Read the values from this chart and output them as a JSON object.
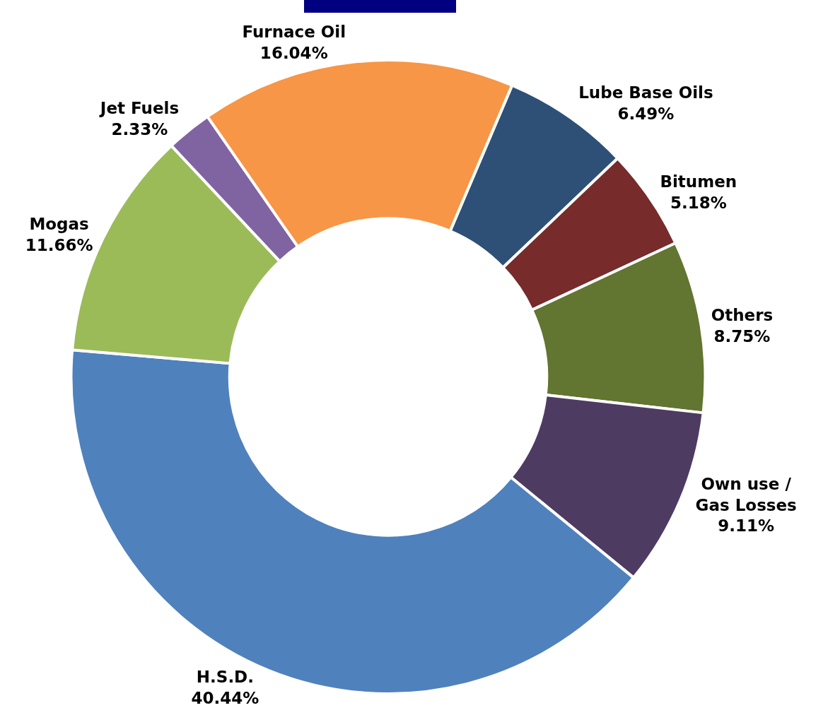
{
  "chart_data": {
    "type": "donut",
    "categories": [
      "Lube Base Oils",
      "Bitumen",
      "Others",
      "Own use / Gas Losses",
      "H.S.D.",
      "Mogas",
      "Jet Fuels",
      "Furnace Oil"
    ],
    "values": [
      6.49,
      5.18,
      8.75,
      9.11,
      40.44,
      11.66,
      2.33,
      16.04
    ],
    "value_labels": [
      "6.49%",
      "5.18%",
      "8.75%",
      "9.11%",
      "40.44%",
      "11.66%",
      "2.33%",
      "16.04%"
    ],
    "colors": [
      "#2e5077",
      "#772b2b",
      "#627531",
      "#4e3b62",
      "#4f81bd",
      "#9bbb59",
      "#8064a2",
      "#f79646"
    ],
    "legend": false
  }
}
